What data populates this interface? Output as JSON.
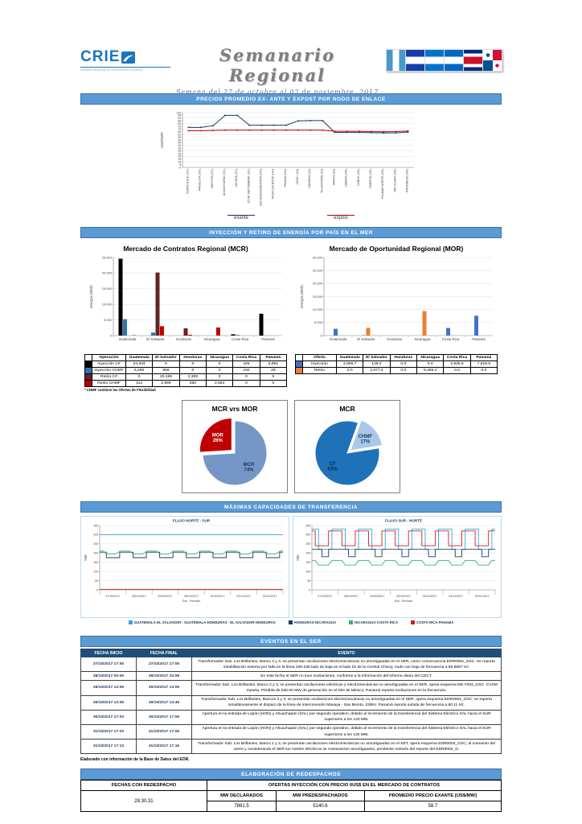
{
  "header": {
    "logo_text": "CRIE",
    "logo_tagline": "Comisión Regional de Interconexión Eléctrica",
    "title": "Semanario Regional",
    "subtitle": "Semana del 27 de octubre al 02 de noviembre, 2017",
    "flags": [
      "guatemala",
      "el-salvador",
      "honduras",
      "nicaragua",
      "costa-rica",
      "panama"
    ]
  },
  "banners": {
    "precios": "PRECIOS PROMEDIO EX- ANTE Y EXPOST POR NODO DE ENLACE",
    "inyeccion": "INYECCIÓN Y RETIRO DE ENERGÍA POR PAÍS EN EL MER",
    "capacidades": "MÁXIMAS CAPACIDADES DE TRANSFERENCIA",
    "eventos": "EVENTOS EN EL SER",
    "redespachos": "ELABORACIÓN DE REDESPACHOS"
  },
  "chart_data": [
    {
      "id": "precios",
      "type": "line",
      "title": "Precios promedio ex-ante y expost por nodo de enlace",
      "ylabel": "USD/MWh",
      "ylim": [
        0,
        100
      ],
      "ytick": 5,
      "grid_every": 10,
      "legend_position": "bottom",
      "categories": [
        "GUATE ESTE (GT)",
        "PANALUYA (GT)",
        "MOYUTA (GT)",
        "AHUACHAPAN (SV)",
        "NEJAPA (SV)",
        "15 DE SEPTIEMBRE (SV)",
        "SAN BUENAVENTURA (HN)",
        "AGUA CALIENTE (HN)",
        "PAVANA (HN)",
        "LEON I (NI)",
        "SANDINO (NI)",
        "TICUANTEPE (NI)",
        "AMAYO (NI)",
        "LIBERIA (CR)",
        "CAÑAS (CR)",
        "PARRITA (CR)",
        "PALMAR NORTE (CR)",
        "RIO CLARO (CR)",
        "PROGRESO (PA)"
      ],
      "series": [
        {
          "name": "exante",
          "color": "#17365C",
          "values": [
            73,
            73,
            76,
            95,
            95,
            77,
            77,
            77,
            77,
            85,
            85.5,
            85.5,
            64,
            64,
            64,
            63.5,
            63,
            63,
            64.5
          ]
        },
        {
          "name": "expost",
          "color": "#C00000",
          "values": [
            67,
            67,
            67.5,
            68,
            68,
            68,
            68,
            68,
            68,
            68,
            68,
            68,
            66,
            66,
            66,
            65.5,
            65,
            65.5,
            66.5
          ]
        }
      ]
    },
    {
      "id": "mcr",
      "type": "bar",
      "title": "Mercado de Contratos Regional (MCR)",
      "ylabel": "Energía (MWh)",
      "ylim": [
        0,
        25000
      ],
      "ytick": 5000,
      "categories": [
        "Guatemala",
        "El Salvador",
        "Honduras",
        "Nicaragua",
        "Costa Rica",
        "Panamá"
      ],
      "series": [
        {
          "name": "Inyección C#",
          "color": "#000000",
          "values": [
            24634,
            0,
            0,
            0,
            425,
            6992
          ]
        },
        {
          "name": "Inyección CHMF",
          "color": "#2E75B6",
          "values": [
            5250,
            956,
            0,
            0,
            192,
            29
          ]
        },
        {
          "name": "Retiro C#",
          "color": "#632423",
          "values": [
            0,
            20199,
            2309,
            0,
            0,
            0
          ]
        },
        {
          "name": "Retiro CHMF",
          "color": "#C00000",
          "values": [
            112,
            2999,
            250,
            2584,
            0,
            0
          ]
        }
      ]
    },
    {
      "id": "mor",
      "type": "bar",
      "title": "Mercado de Oportunidad Regional (MOR)",
      "ylabel": "Energía (MWh)",
      "ylim": [
        0,
        30000
      ],
      "ytick": 5000,
      "categories": [
        "Guatemala",
        "El Salvador",
        "Honduras",
        "Nicaragua",
        "Costa Rica",
        "Panamá"
      ],
      "series": [
        {
          "name": "Inyección",
          "color": "#4472C4",
          "values": [
            2606.7,
            129.2,
            0,
            0,
            2926.6,
            7619.9
          ]
        },
        {
          "name": "Retiro",
          "color": "#ED7D31",
          "values": [
            0,
            2977.4,
            0,
            9406.4,
            0,
            0
          ]
        }
      ]
    },
    {
      "id": "pie-mcr-mor",
      "type": "pie",
      "title": "MCR vrs MOR",
      "start": 0,
      "slices": [
        {
          "label": "MCR",
          "pct": 74,
          "color": "#7696C8",
          "label_color": "#17365C"
        },
        {
          "label": "MOR",
          "pct": 26,
          "color": "#C00000",
          "explode": true,
          "label_color": "#FFFFFF"
        }
      ]
    },
    {
      "id": "pie-mcr",
      "type": "pie",
      "title": "MCR",
      "start": 81,
      "slices": [
        {
          "label": "CF",
          "pct": 83,
          "color": "#1F72B8",
          "label_color": "#0D2A4D"
        },
        {
          "label": "CHMF",
          "pct": 17,
          "color": "#A9C7E8",
          "explode": true,
          "label_color": "#17365C"
        }
      ]
    },
    {
      "id": "flujo-ns",
      "type": "flow",
      "title": "FLUJO NORTE - SUR",
      "ylabel": "MW",
      "xlabel": "Día - Período",
      "ylim": [
        0,
        350
      ],
      "ytick": 50,
      "days": [
        "27/10/2017",
        "28/10/2017",
        "29/10/2017",
        "30/10/2017",
        "31/10/2017",
        "01/11/2017",
        "02/11/2017"
      ],
      "series": [
        {
          "name": "GUATEMALA-EL SALVADOR - GUATEMALA-HONDURAS - EL SALVADOR-HONDURAS",
          "color": "#29ABE2",
          "step": false,
          "pattern": [
            300,
            300,
            300,
            300,
            300,
            300,
            300,
            300
          ]
        },
        {
          "name": "HONDURAS-NICARAGUA",
          "color": "#1F3864",
          "step": true,
          "pattern": [
            205,
            205,
            175,
            175,
            175,
            175,
            205,
            205
          ]
        },
        {
          "name": "NICARAGUA-COSTA RICA",
          "color": "#3BB273",
          "step": false,
          "pattern": [
            210,
            212,
            196,
            194,
            194,
            196,
            210,
            212
          ]
        },
        {
          "name": "COSTA RICA-PANAMÁ",
          "color": "#D02020",
          "step": false,
          "pattern": [
            3,
            3,
            3,
            3,
            3,
            3,
            3,
            3
          ]
        }
      ]
    },
    {
      "id": "flujo-sn",
      "type": "flow",
      "title": "FLUJO SUR - NORTE",
      "ylabel": "MW",
      "xlabel": "Día - Período",
      "ylim": [
        0,
        350
      ],
      "ytick": 50,
      "days": [
        "27/10/2017",
        "28/10/2017",
        "29/10/2017",
        "30/10/2017",
        "31/10/2017",
        "01/11/2017",
        "02/11/2017"
      ],
      "series": [
        {
          "name": "GUATEMALA-EL SALVADOR - GUATEMALA-HONDURAS - EL SALVADOR-HONDURAS",
          "color": "#29ABE2",
          "step": true,
          "pattern": [
            330,
            330,
            220,
            220,
            220,
            220,
            330,
            330
          ]
        },
        {
          "name": "HONDURAS-NICARAGUA",
          "color": "#1F3864",
          "step": true,
          "pattern": [
            220,
            220,
            220,
            180,
            180,
            220,
            220,
            220
          ]
        },
        {
          "name": "NICARAGUA-COSTA RICA",
          "color": "#3BB273",
          "step": false,
          "pattern": [
            160,
            160,
            135,
            135,
            135,
            135,
            160,
            160
          ]
        },
        {
          "name": "COSTA RICA-PANAMÁ",
          "color": "#D02020",
          "step": true,
          "pattern": [
            320,
            240,
            240,
            240,
            240,
            320,
            320,
            320
          ]
        }
      ]
    }
  ],
  "price_legend": [
    {
      "label": "exante",
      "color": "#17365C"
    },
    {
      "label": "expost",
      "color": "#C00000"
    }
  ],
  "mcr_table": {
    "headers": [
      "Operación",
      "Guatemala",
      "El Salvador",
      "Honduras",
      "Nicaragua",
      "Costa Rica",
      "Panamá"
    ],
    "rows": [
      {
        "color": "#000000",
        "label": "Inyección C#",
        "values": [
          "24,634",
          "0",
          "0",
          "0",
          "425",
          "6,992"
        ]
      },
      {
        "color": "#2E75B6",
        "label": "Inyección CHMF",
        "values": [
          "5,250",
          "956",
          "0",
          "0",
          "192",
          "29"
        ]
      },
      {
        "color": "#632423",
        "label": "Retiro C#",
        "values": [
          "0",
          "20,199",
          "2,309",
          "0",
          "0",
          "0"
        ]
      },
      {
        "color": "#C00000",
        "label": "Retiro CHMF",
        "values": [
          "112",
          "2,999",
          "250",
          "2,584",
          "0",
          "0"
        ]
      }
    ],
    "footnote": "* CHMF contiene las Ofertas de Flexibilidad"
  },
  "mor_table": {
    "headers": [
      "Oferta",
      "Guatemala",
      "El Salvador",
      "Honduras",
      "Nicaragua",
      "Costa Rica",
      "Panamá"
    ],
    "rows": [
      {
        "color": "#4472C4",
        "label": "Inyección",
        "values": [
          "2,606.7",
          "129.2",
          "0.0",
          "0.0",
          "2,926.6",
          "7,619.9"
        ]
      },
      {
        "color": "#ED7D31",
        "label": "Retiro",
        "values": [
          "0.0",
          "2,977.4",
          "0.0",
          "9,406.4",
          "0.0",
          "0.0"
        ]
      }
    ]
  },
  "flow_legend": [
    {
      "label": "GUATEMALA-EL SALVADOR - GUATEMALA-HONDURAS - EL SALVADOR-HONDURAS",
      "color": "#29ABE2"
    },
    {
      "label": "HONDURAS-NICARAGUA",
      "color": "#1F3864"
    },
    {
      "label": "NICARAGUA-COSTA RICA",
      "color": "#3BB273"
    },
    {
      "label": "COSTA RICA-PANAMÁ",
      "color": "#D02020"
    }
  ],
  "events_table": {
    "headers": [
      "FECHA INICIO",
      "FECHA FINAL",
      "EVENTO"
    ],
    "rows": [
      {
        "inicio": "27/10/2017 17:00",
        "final": "27/10/2017 17:05",
        "evento": "Transformador Sub. Los Brillantes, Banco 2 y 3, se presentan oscilaciones electromecánicas no amortiguadas en el SER, como consecuencia EDR0004_GSC. Se reporta inhabilitación externa por falla en la línea 230-236 lado de baja en el lado 02 de la Central Chixoy, nodo con baja de frecuencia a 59.5997 Hz."
      },
      {
        "inicio": "28/10/2017 00:00",
        "final": "28/10/2017 23:59",
        "evento": "En esta fecha el SER no tuvo oscilaciones, conforme a la información del informe diario del CDCT."
      },
      {
        "inicio": "29/10/2017 13:05",
        "final": "29/10/2017 13:06",
        "evento": "Transformador Sub. Los Brillantes, Banco 2 y 3, se presentan oscilaciones eléctricas y electromecánicas no amortiguadas en el SER, opera esquema EB-Y004_GSC. CVSM reporta, Pérdida de 630.00 MW de generación en el SIN de México, Panamá reporta oscilaciones en la frecuencia."
      },
      {
        "inicio": "29/10/2017 13:05",
        "final": "29/10/2017 13:46",
        "evento": "Transformador Sub. Los Brillantes, Bancos 2 y 3, se presentan oscilaciones electromecánicas no amortiguadas en el SER, opera esquema EDR0004_GSC; se reporta simultáneamente el disparo de la línea de interconexión Masaya - San Benito, 230kV. Panamá reporta subida de frecuencia a 60.11 Hz."
      },
      {
        "inicio": "30/10/2017 17:03",
        "final": "30/10/2017 17:06",
        "evento": "Apertura en la entrada de Lopón (HON) y Ahuachapán (SAL) por segundo operativo, debido al incremento de la transferencia del Sistema Eléctrico SAL hacia el SUR superiores a los 120 MW."
      },
      {
        "inicio": "31/10/2017 17:03",
        "final": "31/10/2017 17:06",
        "evento": "Apertura en la entrada de Lopón (HON) y Ahuachapán (SAL) por segundo operativo, debido al incremento de la transferencia del Sistema Eléctrico SAL hacia el SUR superiores a los 120 MW."
      },
      {
        "inicio": "31/10/2017 17:13",
        "final": "31/10/2017 17:16",
        "evento": "Transformador Sub. Los Brillantes, Banco 1 y 3, se presentan oscilaciones electromecánicas no amortiguadas en el SET, opera esquema EDR0004_GSC; al momento del cierre y considerando el SER los niveles eléctricos se mantuvieron amortiguados, pendiente revisión del reporte del EDR0004_G."
      }
    ]
  },
  "events_footnote": "Elaborado con información de la Base de Datos del EOR.",
  "redespachos": {
    "fechas_header": "FECHAS CON REDESPACHO",
    "ofertas_header": "OFERTAS INYECCIÓN CON PRECIO 0US$ EN EL MERCADO DE CONTRATOS",
    "sub_headers": [
      "MW DECLARADOS",
      "MW PREDESPACHADOS",
      "PROMEDIO PRECIO EXANTE [US$/MW]"
    ],
    "fechas": "28,30,31",
    "values": [
      "7881.5",
      "5140.6",
      "58.7"
    ]
  }
}
